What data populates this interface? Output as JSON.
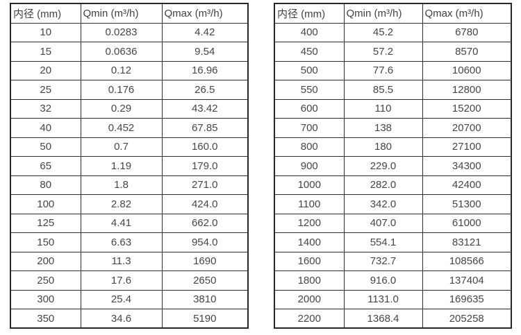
{
  "page": {
    "background_color": "#ffffff",
    "border_color": "#2b2b2b",
    "text_color": "#464646",
    "description_rendered_content": "Two side-by-side specification tables listing pipe inner diameter versus minimum and maximum flow rate"
  },
  "tables": [
    {
      "name": "flow-range-table-small-diameters",
      "headers": [
        "内径 (mm)",
        "Qmin (m³/h)",
        "Qmax (m³/h)"
      ],
      "rows": [
        [
          "10",
          "0.0283",
          "4.42"
        ],
        [
          "15",
          "0.0636",
          "9.54"
        ],
        [
          "20",
          "0.12",
          "16.96"
        ],
        [
          "25",
          "0.176",
          "26.5"
        ],
        [
          "32",
          "0.29",
          "43.42"
        ],
        [
          "40",
          "0.452",
          "67.85"
        ],
        [
          "50",
          "0.7",
          "160.0"
        ],
        [
          "65",
          "1.19",
          "179.0"
        ],
        [
          "80",
          "1.8",
          "271.0"
        ],
        [
          "100",
          "2.82",
          "424.0"
        ],
        [
          "125",
          "4.41",
          "662.0"
        ],
        [
          "150",
          "6.63",
          "954.0"
        ],
        [
          "200",
          "11.3",
          "1690"
        ],
        [
          "250",
          "17.6",
          "2650"
        ],
        [
          "300",
          "25.4",
          "3810"
        ],
        [
          "350",
          "34.6",
          "5190"
        ]
      ]
    },
    {
      "name": "flow-range-table-large-diameters",
      "headers": [
        "内径 (mm)",
        "Qmin (m³/h)",
        "Qmax (m³/h)"
      ],
      "rows": [
        [
          "400",
          "45.2",
          "6780"
        ],
        [
          "450",
          "57.2",
          "8570"
        ],
        [
          "500",
          "77.6",
          "10600"
        ],
        [
          "550",
          "85.5",
          "12800"
        ],
        [
          "600",
          "110",
          "15200"
        ],
        [
          "700",
          "138",
          "20700"
        ],
        [
          "800",
          "180",
          "27100"
        ],
        [
          "900",
          "229.0",
          "34300"
        ],
        [
          "1000",
          "282.0",
          "42400"
        ],
        [
          "1100",
          "342.0",
          "51300"
        ],
        [
          "1200",
          "407.0",
          "61000"
        ],
        [
          "1400",
          "554.1",
          "83121"
        ],
        [
          "1600",
          "732.7",
          "108566"
        ],
        [
          "1800",
          "916.0",
          "137404"
        ],
        [
          "2000",
          "1131.0",
          "169635"
        ],
        [
          "2200",
          "1368.4",
          "205258"
        ]
      ]
    }
  ]
}
